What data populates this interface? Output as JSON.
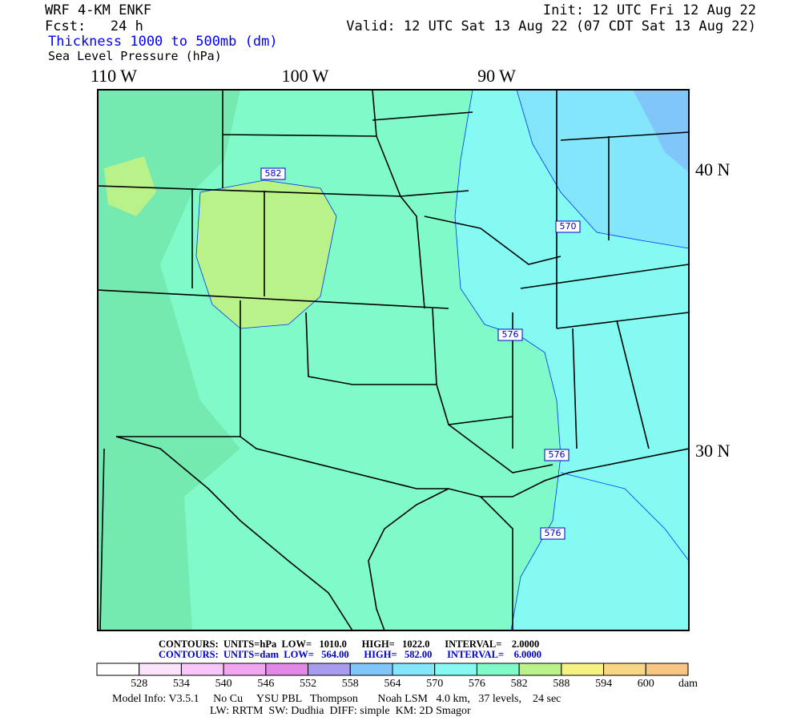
{
  "header": {
    "model": "WRF 4-KM ENKF",
    "fcst": "Fcst:   24 h",
    "init": "Init: 12 UTC Fri 12 Aug 22",
    "valid": "Valid: 12 UTC Sat 13 Aug 22 (07 CDT Sat 13 Aug 22)",
    "field1": "Thickness 1000 to 500mb (dm)",
    "field2": "Sea Level Pressure (hPa)"
  },
  "map": {
    "longitude_labels": [
      "110 W",
      "100 W",
      "90 W"
    ],
    "latitude_labels": [
      "40 N",
      "30 N"
    ],
    "contour_labels": [
      "582",
      "570",
      "576",
      "576",
      "576"
    ]
  },
  "info": {
    "contours_slp": "CONTOURS:  UNITS=hPa  LOW=   1010.0      HIGH=   1022.0      INTERVAL=    2.0000",
    "contours_thickness": "CONTOURS:  UNITS=dam  LOW=   564.00      HIGH=   582.00      INTERVAL=    6.0000",
    "model_info": "Model Info: V3.5.1     No Cu     YSU PBL   Thompson       Noah LSM   4.0 km,   37 levels,    24 sec",
    "physics": "LW: RRTM  SW: Dudhia  DIFF: simple  KM: 2D Smagor"
  },
  "colorbar": {
    "ticks": [
      528,
      534,
      540,
      546,
      552,
      558,
      564,
      570,
      576,
      582,
      588,
      594,
      600
    ],
    "unit": "dam",
    "colors": [
      "#ffffff",
      "#fbe3fb",
      "#f8c6f8",
      "#f2a6f2",
      "#e488e8",
      "#a89cf0",
      "#80c6f8",
      "#84e6fa",
      "#84faf2",
      "#80fac8",
      "#b8f288",
      "#f6f282",
      "#f8d684",
      "#f8c482"
    ]
  }
}
